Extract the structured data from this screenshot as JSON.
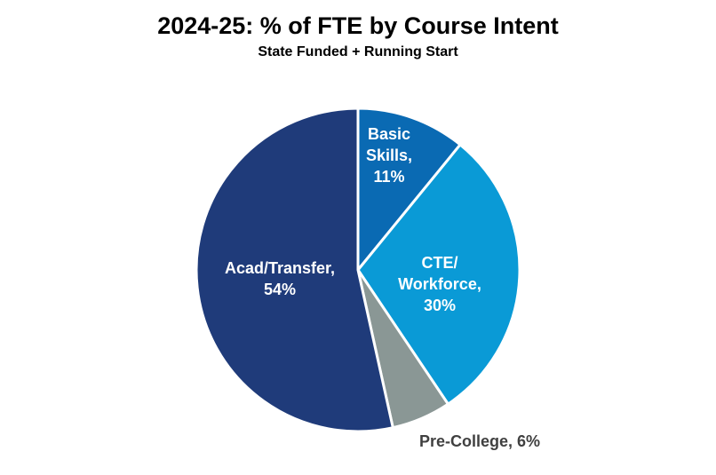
{
  "chart_data": {
    "type": "pie",
    "title": "2024-25: % of FTE by Course Intent",
    "subtitle": "State Funded + Running Start",
    "slices": [
      {
        "label": "Basic Skills",
        "value": 11,
        "display": [
          "Basic",
          "Skills,",
          "11%"
        ],
        "color": "#0a6ab3",
        "label_color": "#ffffff"
      },
      {
        "label": "CTE/Workforce",
        "value": 30,
        "display": [
          "CTE/",
          "Workforce,",
          "30%"
        ],
        "color": "#0a9ad6",
        "label_color": "#ffffff"
      },
      {
        "label": "Pre-College",
        "value": 6,
        "display": [
          "Pre-College, 6%"
        ],
        "color": "#8a9795",
        "label_color": "#404040"
      },
      {
        "label": "Acad/Transfer",
        "value": 54,
        "display": [
          "Acad/Transfer,",
          "54%"
        ],
        "color": "#1f3b7a",
        "label_color": "#ffffff"
      }
    ]
  }
}
